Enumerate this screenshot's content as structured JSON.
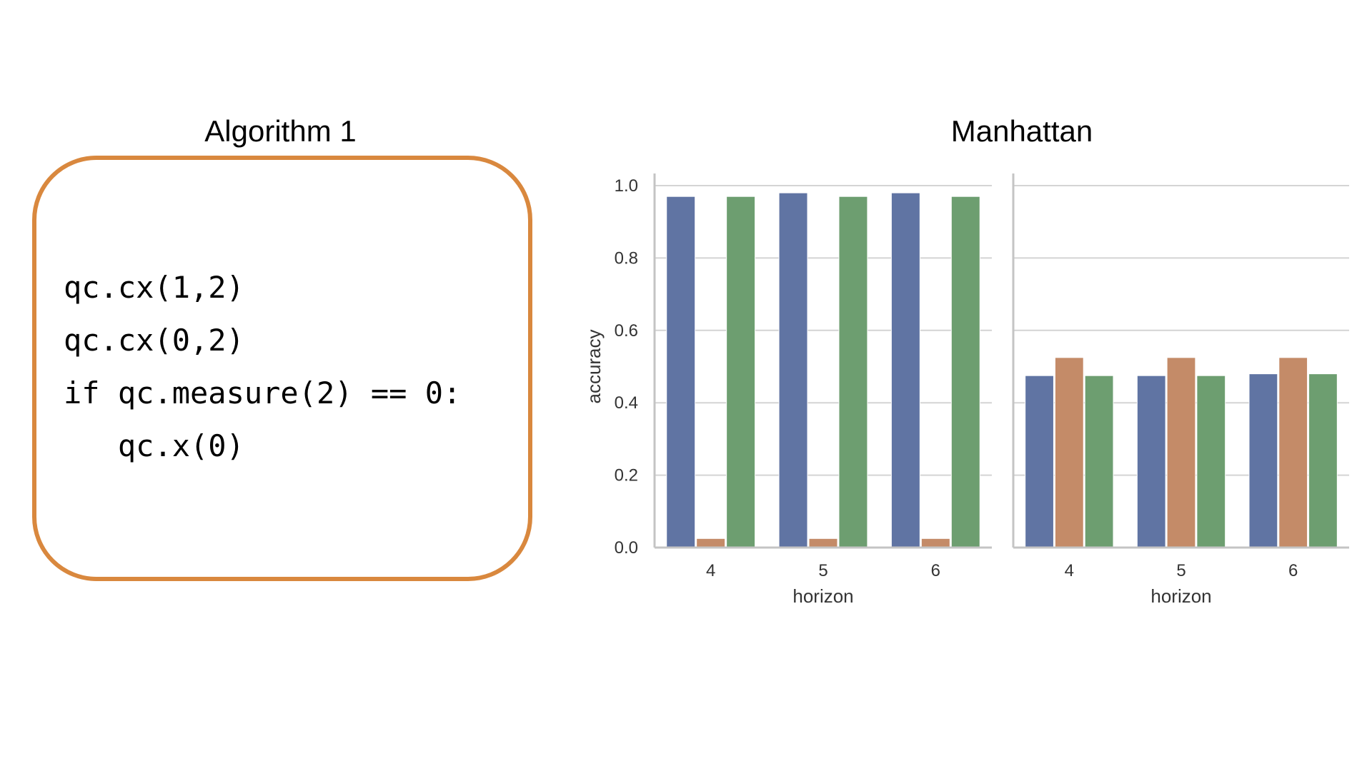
{
  "algorithm": {
    "title": "Algorithm 1",
    "code_lines": [
      "qc.cx(1,2)",
      "qc.cx(0,2)",
      "if qc.measure(2) == 0:",
      "   qc.x(0)"
    ]
  },
  "colors": {
    "box_border": "#d9883e",
    "series": [
      "#6074a3",
      "#c48b68",
      "#6d9e70"
    ],
    "grid": "#d4d4d4",
    "axis": "#c4c4c4",
    "tick_text": "#333333"
  },
  "chart_data": {
    "type": "bar",
    "title": "Manhattan",
    "panels": [
      {
        "xlabel": "horizon",
        "ylabel": "accuracy",
        "categories": [
          "4",
          "5",
          "6"
        ],
        "series": [
          {
            "values": [
              0.97,
              0.98,
              0.98
            ]
          },
          {
            "values": [
              0.025,
              0.025,
              0.025
            ]
          },
          {
            "values": [
              0.97,
              0.97,
              0.97
            ]
          }
        ]
      },
      {
        "xlabel": "horizon",
        "ylabel": "",
        "categories": [
          "4",
          "5",
          "6"
        ],
        "series": [
          {
            "values": [
              0.475,
              0.475,
              0.48
            ]
          },
          {
            "values": [
              0.525,
              0.525,
              0.525
            ]
          },
          {
            "values": [
              0.475,
              0.475,
              0.48
            ]
          }
        ]
      }
    ],
    "yticks": [
      "0.0",
      "0.2",
      "0.4",
      "0.6",
      "0.8",
      "1.0"
    ],
    "ylim": [
      0,
      1.0
    ],
    "grid": true,
    "legend": "none"
  }
}
